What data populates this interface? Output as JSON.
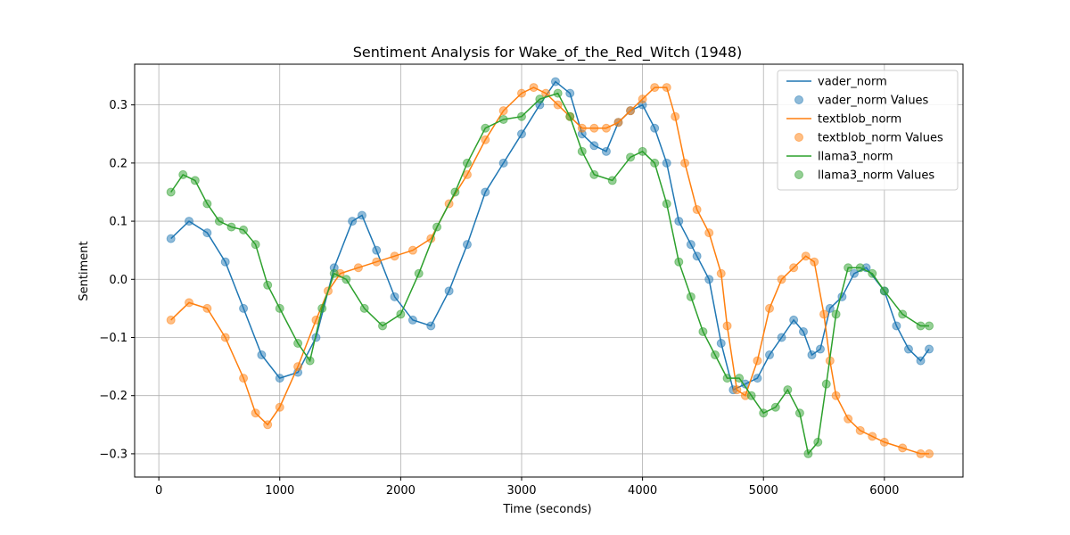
{
  "chart_data": {
    "type": "line",
    "title": "Sentiment Analysis for Wake_of_the_Red_Witch (1948)",
    "xlabel": "Time (seconds)",
    "ylabel": "Sentiment",
    "xlim": [
      -200,
      6650
    ],
    "ylim": [
      -0.34,
      0.37
    ],
    "xticks": [
      0,
      1000,
      2000,
      3000,
      4000,
      5000,
      6000
    ],
    "yticks": [
      -0.3,
      -0.2,
      -0.1,
      0.0,
      0.1,
      0.2,
      0.3
    ],
    "xtick_labels": [
      "0",
      "1000",
      "2000",
      "3000",
      "4000",
      "5000",
      "6000"
    ],
    "ytick_labels": [
      "−0.3",
      "−0.2",
      "−0.1",
      "0.0",
      "0.1",
      "0.2",
      "0.3"
    ],
    "grid": true,
    "legend_position": "top-right",
    "series": [
      {
        "name": "vader_norm",
        "color": "#1f77b4",
        "x": [
          100,
          250,
          400,
          550,
          700,
          850,
          1000,
          1150,
          1300,
          1450,
          1600,
          1680,
          1800,
          1950,
          2100,
          2250,
          2400,
          2550,
          2700,
          2850,
          3000,
          3150,
          3280,
          3400,
          3500,
          3600,
          3700,
          3800,
          3900,
          4000,
          4100,
          4200,
          4300,
          4400,
          4450,
          4550,
          4650,
          4750,
          4850,
          4950,
          5050,
          5150,
          5250,
          5330,
          5400,
          5470,
          5550,
          5650,
          5750,
          5850,
          6000,
          6100,
          6200,
          6300,
          6370
        ],
        "values": [
          0.07,
          0.1,
          0.08,
          0.03,
          -0.05,
          -0.13,
          -0.17,
          -0.16,
          -0.1,
          0.02,
          0.1,
          0.11,
          0.05,
          -0.03,
          -0.07,
          -0.08,
          -0.02,
          0.06,
          0.15,
          0.2,
          0.25,
          0.3,
          0.34,
          0.32,
          0.25,
          0.23,
          0.22,
          0.27,
          0.29,
          0.3,
          0.26,
          0.2,
          0.1,
          0.06,
          0.04,
          0.0,
          -0.11,
          -0.19,
          -0.18,
          -0.17,
          -0.13,
          -0.1,
          -0.07,
          -0.09,
          -0.13,
          -0.12,
          -0.05,
          -0.03,
          0.01,
          0.02,
          -0.02,
          -0.08,
          -0.12,
          -0.14,
          -0.12
        ]
      },
      {
        "name": "textblob_norm",
        "color": "#ff7f0e",
        "x": [
          100,
          250,
          400,
          550,
          700,
          800,
          900,
          1000,
          1150,
          1300,
          1400,
          1500,
          1650,
          1800,
          1950,
          2100,
          2250,
          2400,
          2550,
          2700,
          2850,
          3000,
          3100,
          3200,
          3300,
          3400,
          3500,
          3600,
          3700,
          3800,
          3900,
          4000,
          4100,
          4200,
          4270,
          4350,
          4450,
          4550,
          4650,
          4700,
          4780,
          4850,
          4950,
          5050,
          5150,
          5250,
          5350,
          5420,
          5500,
          5550,
          5600,
          5700,
          5800,
          5900,
          6000,
          6150,
          6300,
          6370
        ],
        "values": [
          -0.07,
          -0.04,
          -0.05,
          -0.1,
          -0.17,
          -0.23,
          -0.25,
          -0.22,
          -0.15,
          -0.07,
          -0.02,
          0.01,
          0.02,
          0.03,
          0.04,
          0.05,
          0.07,
          0.13,
          0.18,
          0.24,
          0.29,
          0.32,
          0.33,
          0.32,
          0.3,
          0.28,
          0.26,
          0.26,
          0.26,
          0.27,
          0.29,
          0.31,
          0.33,
          0.33,
          0.28,
          0.2,
          0.12,
          0.08,
          0.01,
          -0.08,
          -0.19,
          -0.2,
          -0.14,
          -0.05,
          0.0,
          0.02,
          0.04,
          0.03,
          -0.06,
          -0.14,
          -0.2,
          -0.24,
          -0.26,
          -0.27,
          -0.28,
          -0.29,
          -0.3,
          -0.3
        ]
      },
      {
        "name": "llama3_norm",
        "color": "#2ca02c",
        "x": [
          100,
          200,
          300,
          400,
          500,
          600,
          700,
          800,
          900,
          1000,
          1150,
          1250,
          1350,
          1450,
          1550,
          1700,
          1850,
          2000,
          2150,
          2300,
          2450,
          2550,
          2700,
          2850,
          3000,
          3150,
          3300,
          3400,
          3500,
          3600,
          3750,
          3900,
          4000,
          4100,
          4200,
          4300,
          4400,
          4500,
          4600,
          4700,
          4800,
          4900,
          5000,
          5100,
          5200,
          5300,
          5370,
          5450,
          5520,
          5600,
          5700,
          5800,
          5900,
          6000,
          6150,
          6300,
          6370
        ],
        "values": [
          0.15,
          0.18,
          0.17,
          0.13,
          0.1,
          0.09,
          0.085,
          0.06,
          -0.01,
          -0.05,
          -0.11,
          -0.14,
          -0.05,
          0.01,
          0.0,
          -0.05,
          -0.08,
          -0.06,
          0.01,
          0.09,
          0.15,
          0.2,
          0.26,
          0.275,
          0.28,
          0.31,
          0.32,
          0.28,
          0.22,
          0.18,
          0.17,
          0.21,
          0.22,
          0.2,
          0.13,
          0.03,
          -0.03,
          -0.09,
          -0.13,
          -0.17,
          -0.17,
          -0.2,
          -0.23,
          -0.22,
          -0.19,
          -0.23,
          -0.3,
          -0.28,
          -0.18,
          -0.06,
          0.02,
          0.02,
          0.01,
          -0.02,
          -0.06,
          -0.08,
          -0.08
        ]
      }
    ],
    "legend": {
      "entries": [
        {
          "label": "vader_norm",
          "kind": "line",
          "color": "#1f77b4"
        },
        {
          "label": "vader_norm Values",
          "kind": "marker",
          "color": "#1f77b4"
        },
        {
          "label": "textblob_norm",
          "kind": "line",
          "color": "#ff7f0e"
        },
        {
          "label": "textblob_norm Values",
          "kind": "marker",
          "color": "#ff7f0e"
        },
        {
          "label": "llama3_norm",
          "kind": "line",
          "color": "#2ca02c"
        },
        {
          "label": "llama3_norm Values",
          "kind": "marker",
          "color": "#2ca02c"
        }
      ]
    }
  }
}
